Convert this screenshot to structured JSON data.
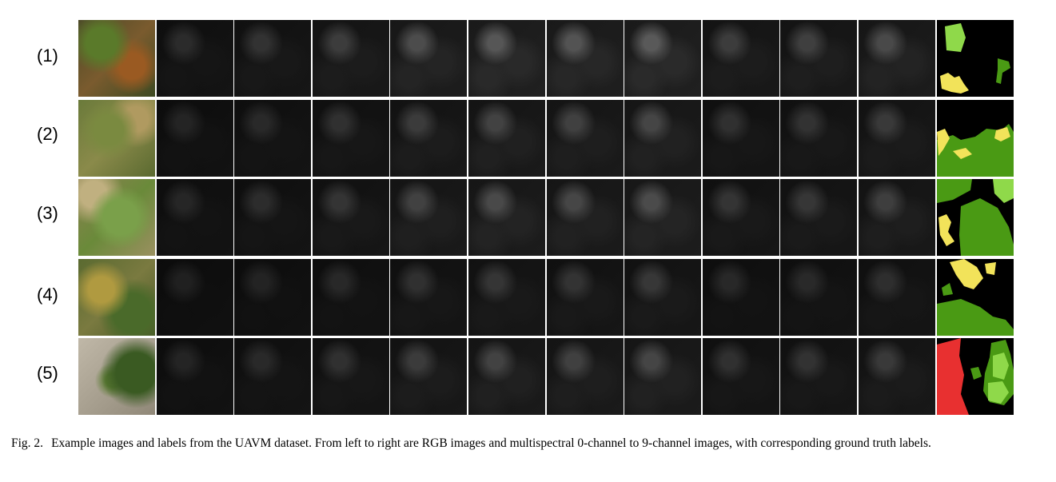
{
  "rows": [
    {
      "label": "(1)"
    },
    {
      "label": "(2)"
    },
    {
      "label": "(3)"
    },
    {
      "label": "(4)"
    },
    {
      "label": "(5)"
    }
  ],
  "columns": [
    "RGB",
    "0-channel",
    "1-channel",
    "2-channel",
    "3-channel",
    "4-channel",
    "5-channel",
    "6-channel",
    "7-channel",
    "8-channel",
    "9-channel",
    "ground truth label"
  ],
  "label_colors": {
    "light_green": "#8fd94a",
    "dark_green": "#4a9a14",
    "yellow": "#f2e35a",
    "red": "#e83030",
    "background": "#000000"
  },
  "caption": {
    "fig": "Fig. 2.",
    "text": "Example images and labels from the UAVM dataset. From left to right are RGB images and multispectral 0-channel to 9-channel images, with corresponding ground truth labels."
  }
}
